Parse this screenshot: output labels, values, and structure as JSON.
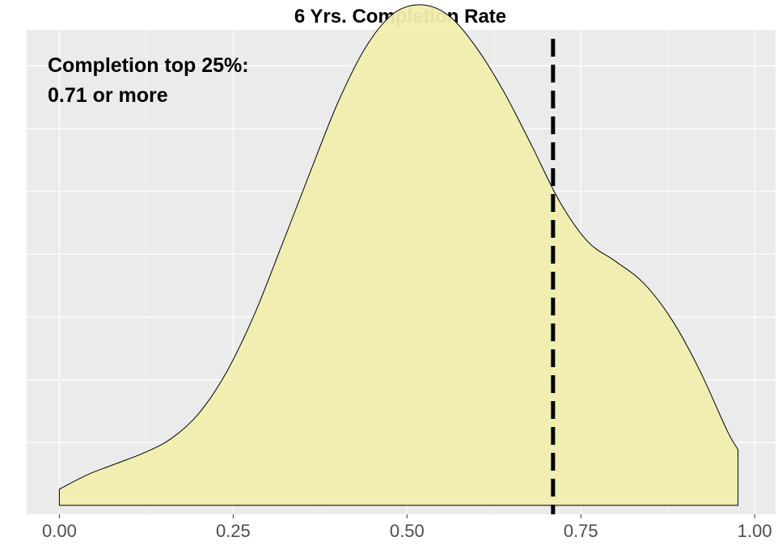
{
  "chart_data": {
    "type": "area",
    "title": "6 Yrs. Completion Rate",
    "xlabel": "",
    "ylabel": "",
    "xlim": [
      -0.047,
      1.03
    ],
    "ylim": [
      -0.05,
      2.65
    ],
    "x_ticks": [
      0.0,
      0.25,
      0.5,
      0.75,
      1.0
    ],
    "x_tick_labels": [
      "0.00",
      "0.25",
      "0.50",
      "0.75",
      "1.00"
    ],
    "y_gridlines": [
      0.35,
      0.7,
      1.05,
      1.4,
      1.75,
      2.1,
      2.45
    ],
    "grid": true,
    "fill_color": "#f0eeae",
    "panel_color": "#ebebeb",
    "density": {
      "x": [
        0.0,
        0.04,
        0.08,
        0.12,
        0.16,
        0.2,
        0.24,
        0.28,
        0.32,
        0.36,
        0.4,
        0.44,
        0.48,
        0.52,
        0.56,
        0.6,
        0.64,
        0.68,
        0.72,
        0.76,
        0.8,
        0.84,
        0.88,
        0.92,
        0.96,
        0.976
      ],
      "y": [
        0.09,
        0.17,
        0.23,
        0.29,
        0.37,
        0.51,
        0.74,
        1.06,
        1.45,
        1.85,
        2.24,
        2.55,
        2.74,
        2.79,
        2.73,
        2.55,
        2.3,
        2.0,
        1.69,
        1.47,
        1.36,
        1.24,
        1.04,
        0.76,
        0.42,
        0.31
      ]
    },
    "vline": {
      "x": 0.71,
      "style": "dashed",
      "color": "#000000"
    },
    "annotation": {
      "line1": "Completion top 25%:",
      "line2": "0.71 or more"
    }
  }
}
